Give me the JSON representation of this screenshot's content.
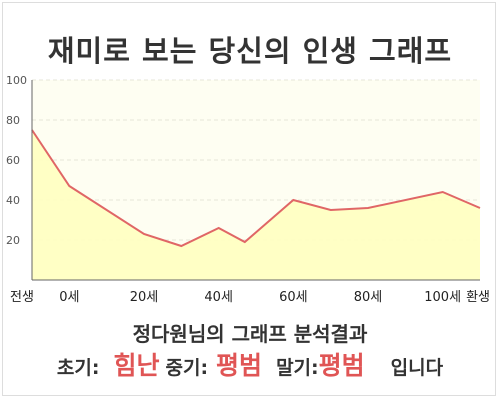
{
  "title": "재미로 보는 당신의 인생 그래프",
  "colors": {
    "line": "#e06666",
    "fill": "#ffffc0",
    "plot_bg": "#fefef2",
    "grid": "#e6e6d8",
    "axis": "#666666",
    "highlight": "#e05555"
  },
  "chart_data": {
    "type": "area",
    "x_categories": [
      "전생",
      "0세",
      "20세",
      "40세",
      "60세",
      "80세",
      "100세",
      "환생"
    ],
    "y_ticks": [
      20,
      40,
      60,
      80,
      100
    ],
    "ylim": [
      0,
      100
    ],
    "xlabel": "",
    "ylabel": "",
    "grid": true,
    "series": [
      {
        "x": [
          -10,
          0,
          20,
          30,
          40,
          47,
          60,
          70,
          80,
          100,
          110
        ],
        "y": [
          75,
          47,
          23,
          17,
          26,
          19,
          40,
          35,
          36,
          44,
          36
        ]
      }
    ]
  },
  "analysis": {
    "heading": "정다원님의 그래프 분석결과",
    "early_label": "초기:",
    "early_value": "힘난",
    "middle_label": "중기:",
    "middle_value": "평범",
    "late_label": "말기:",
    "late_value": "평범",
    "suffix": "입니다"
  }
}
